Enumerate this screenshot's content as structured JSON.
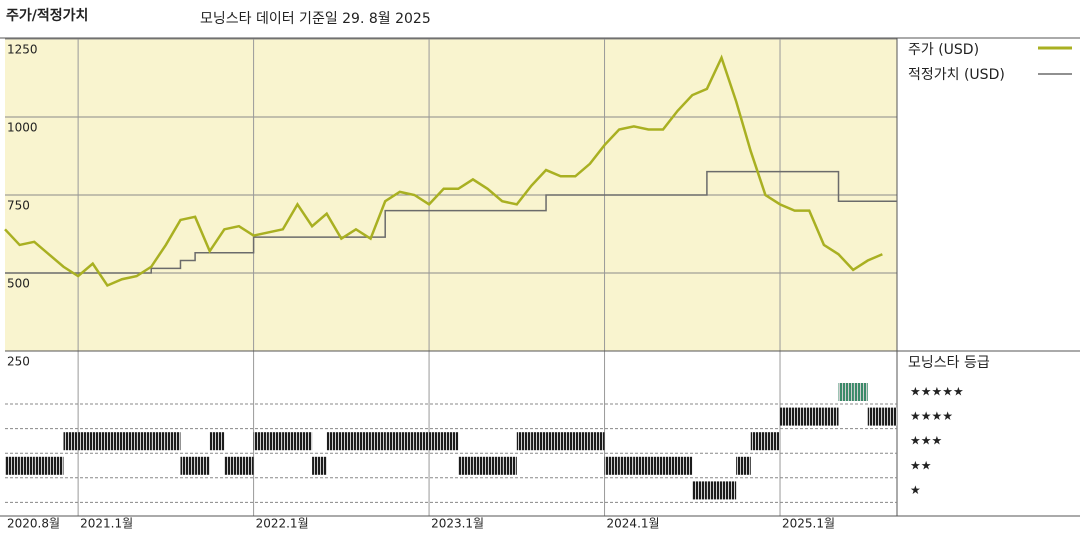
{
  "chart_data": {
    "type": "line",
    "title": "주가/적정가치",
    "subtitle": "모닝스타 데이터 기준일 29. 8월 2025",
    "x": [
      "2020-08",
      "2020-09",
      "2020-10",
      "2020-11",
      "2020-12",
      "2021-01",
      "2021-02",
      "2021-03",
      "2021-04",
      "2021-05",
      "2021-06",
      "2021-07",
      "2021-08",
      "2021-09",
      "2021-10",
      "2021-11",
      "2021-12",
      "2022-01",
      "2022-02",
      "2022-03",
      "2022-04",
      "2022-05",
      "2022-06",
      "2022-07",
      "2022-08",
      "2022-09",
      "2022-10",
      "2022-11",
      "2022-12",
      "2023-01",
      "2023-02",
      "2023-03",
      "2023-04",
      "2023-05",
      "2023-06",
      "2023-07",
      "2023-08",
      "2023-09",
      "2023-10",
      "2023-11",
      "2023-12",
      "2024-01",
      "2024-02",
      "2024-03",
      "2024-04",
      "2024-05",
      "2024-06",
      "2024-07",
      "2024-08",
      "2024-09",
      "2024-10",
      "2024-11",
      "2024-12",
      "2025-01",
      "2025-02",
      "2025-03",
      "2025-04",
      "2025-05",
      "2025-06",
      "2025-07",
      "2025-08"
    ],
    "xlim": [
      "2020-08",
      "2025-09"
    ],
    "xticks": [
      {
        "value": "2020-08",
        "label": "2020.8월"
      },
      {
        "value": "2021-01",
        "label": "2021.1월"
      },
      {
        "value": "2022-01",
        "label": "2022.1월"
      },
      {
        "value": "2023-01",
        "label": "2023.1월"
      },
      {
        "value": "2024-01",
        "label": "2024.1월"
      },
      {
        "value": "2025-01",
        "label": "2025.1월"
      }
    ],
    "ylim": [
      250,
      1250
    ],
    "yticks": [
      250,
      500,
      750,
      1000,
      1250
    ],
    "background": "#f9f4cf",
    "series": [
      {
        "name": "주가 (USD)",
        "color": "#a9b022",
        "values": [
          640,
          590,
          600,
          560,
          520,
          490,
          530,
          460,
          480,
          490,
          520,
          590,
          670,
          680,
          570,
          640,
          650,
          620,
          630,
          640,
          720,
          650,
          690,
          610,
          640,
          610,
          730,
          760,
          750,
          720,
          770,
          770,
          800,
          770,
          730,
          720,
          780,
          830,
          810,
          810,
          850,
          910,
          960,
          970,
          960,
          960,
          1020,
          1070,
          1090,
          1190,
          1050,
          890,
          750,
          720,
          700,
          700,
          590,
          560,
          510,
          540,
          560
        ]
      },
      {
        "name": "적정가치 (USD)",
        "color": "#6b6b6b",
        "drawstyle": "steps-post",
        "values": [
          500,
          500,
          500,
          500,
          500,
          500,
          500,
          500,
          500,
          500,
          515,
          515,
          540,
          565,
          565,
          565,
          565,
          615,
          615,
          615,
          615,
          615,
          615,
          615,
          615,
          615,
          700,
          700,
          700,
          700,
          700,
          700,
          700,
          700,
          700,
          700,
          700,
          750,
          750,
          750,
          750,
          750,
          750,
          750,
          750,
          750,
          750,
          750,
          825,
          825,
          825,
          825,
          825,
          825,
          825,
          825,
          825,
          730,
          730,
          730,
          730
        ]
      }
    ],
    "rating": {
      "title": "모닝스타 등급",
      "values": [
        2,
        2,
        2,
        2,
        3,
        3,
        3,
        3,
        3,
        3,
        3,
        3,
        2,
        2,
        3,
        2,
        2,
        3,
        3,
        3,
        3,
        2,
        3,
        3,
        3,
        3,
        3,
        3,
        3,
        3,
        3,
        2,
        2,
        2,
        2,
        3,
        3,
        3,
        3,
        3,
        3,
        2,
        2,
        2,
        2,
        2,
        2,
        1,
        1,
        1,
        2,
        3,
        3,
        4,
        4,
        4,
        4,
        5,
        5,
        4,
        4
      ],
      "ticks": [
        {
          "value": 5,
          "label": "★★★★★"
        },
        {
          "value": 4,
          "label": "★★★★"
        },
        {
          "value": 3,
          "label": "★★★"
        },
        {
          "value": 2,
          "label": "★★"
        },
        {
          "value": 1,
          "label": "★"
        }
      ],
      "colors": [
        "#1c1c1c",
        "#1c1c1c",
        "#1c1c1c",
        "#1c1c1c",
        "#3b8a69"
      ]
    }
  }
}
